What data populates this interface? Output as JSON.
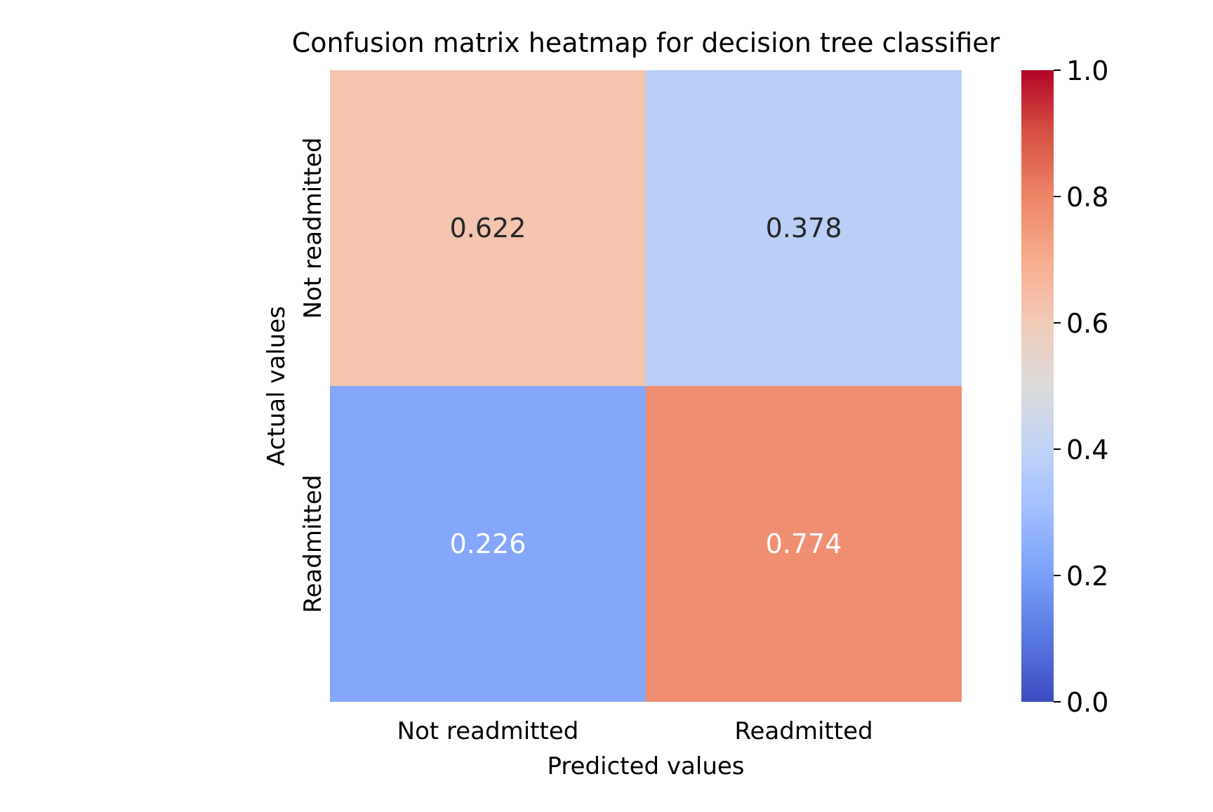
{
  "chart_data": {
    "type": "heatmap",
    "title": "Confusion matrix heatmap for decision tree classifier",
    "xlabel": "Predicted values",
    "ylabel": "Actual values",
    "x_categories": [
      "Not readmitted",
      "Readmitted"
    ],
    "y_categories": [
      "Not readmitted",
      "Readmitted"
    ],
    "values": [
      [
        0.622,
        0.378
      ],
      [
        0.226,
        0.774
      ]
    ],
    "cell_labels": [
      [
        "0.622",
        "0.378"
      ],
      [
        "0.226",
        "0.774"
      ]
    ],
    "colorscale": "coolwarm",
    "vmin": 0.0,
    "vmax": 1.0,
    "colorbar_ticks": [
      "0.0",
      "0.2",
      "0.4",
      "0.6",
      "0.8",
      "1.0"
    ],
    "grid": false
  }
}
